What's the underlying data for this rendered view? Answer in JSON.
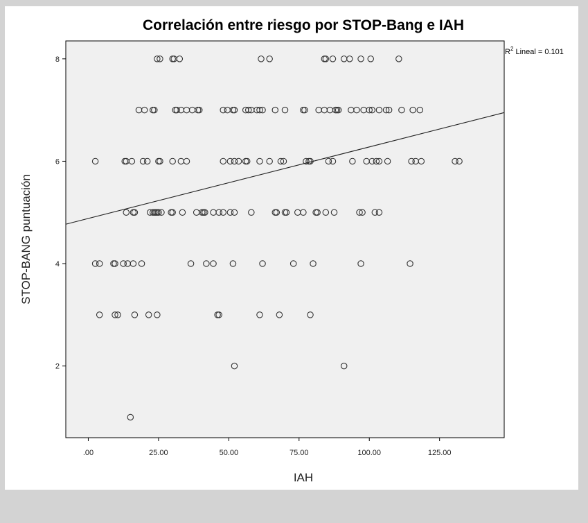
{
  "chart_data": {
    "type": "scatter",
    "title": "Correlación entre riesgo por STOP-Bang e IAH",
    "xlabel": "IAH",
    "ylabel": "STOP-BANG puntuación",
    "xlim": [
      -8,
      148
    ],
    "ylim": [
      0.6,
      8.35
    ],
    "x_ticks": [
      0,
      25,
      50,
      75,
      100,
      125
    ],
    "x_tick_labels": [
      ".00",
      "25.00",
      "50.00",
      "75.00",
      "100.00",
      "125.00"
    ],
    "y_ticks": [
      2,
      4,
      6,
      8
    ],
    "y_tick_labels": [
      "2",
      "4",
      "6",
      "8"
    ],
    "fit_line": {
      "label_prefix": "R",
      "label_sup": "2",
      "label_suffix": " Lineal = 0.101",
      "y_at_xmin": 4.77,
      "y_at_xmax": 6.95
    },
    "points": [
      {
        "x": 15,
        "y": 1
      },
      {
        "x": 52,
        "y": 2
      },
      {
        "x": 91,
        "y": 2
      },
      {
        "x": 4,
        "y": 3
      },
      {
        "x": 9.5,
        "y": 3
      },
      {
        "x": 10.5,
        "y": 3
      },
      {
        "x": 16.5,
        "y": 3
      },
      {
        "x": 21.5,
        "y": 3
      },
      {
        "x": 24.5,
        "y": 3
      },
      {
        "x": 46,
        "y": 3
      },
      {
        "x": 46.5,
        "y": 3
      },
      {
        "x": 61,
        "y": 3
      },
      {
        "x": 68,
        "y": 3
      },
      {
        "x": 79,
        "y": 3
      },
      {
        "x": 2.5,
        "y": 4
      },
      {
        "x": 4,
        "y": 4
      },
      {
        "x": 9,
        "y": 4
      },
      {
        "x": 9.5,
        "y": 4
      },
      {
        "x": 12.5,
        "y": 4
      },
      {
        "x": 14,
        "y": 4
      },
      {
        "x": 16,
        "y": 4
      },
      {
        "x": 19,
        "y": 4
      },
      {
        "x": 36.5,
        "y": 4
      },
      {
        "x": 42,
        "y": 4
      },
      {
        "x": 44.5,
        "y": 4
      },
      {
        "x": 51.5,
        "y": 4
      },
      {
        "x": 62,
        "y": 4
      },
      {
        "x": 73,
        "y": 4
      },
      {
        "x": 80,
        "y": 4
      },
      {
        "x": 97,
        "y": 4
      },
      {
        "x": 114.5,
        "y": 4
      },
      {
        "x": 13.5,
        "y": 5
      },
      {
        "x": 16,
        "y": 5
      },
      {
        "x": 16.5,
        "y": 5
      },
      {
        "x": 22,
        "y": 5
      },
      {
        "x": 23,
        "y": 5
      },
      {
        "x": 23.5,
        "y": 5
      },
      {
        "x": 24,
        "y": 5
      },
      {
        "x": 24.5,
        "y": 5
      },
      {
        "x": 25,
        "y": 5
      },
      {
        "x": 26,
        "y": 5
      },
      {
        "x": 29.5,
        "y": 5
      },
      {
        "x": 30,
        "y": 5
      },
      {
        "x": 33.5,
        "y": 5
      },
      {
        "x": 38.5,
        "y": 5
      },
      {
        "x": 40.5,
        "y": 5
      },
      {
        "x": 41,
        "y": 5
      },
      {
        "x": 41.5,
        "y": 5
      },
      {
        "x": 44.5,
        "y": 5
      },
      {
        "x": 46.5,
        "y": 5
      },
      {
        "x": 48,
        "y": 5
      },
      {
        "x": 50.5,
        "y": 5
      },
      {
        "x": 52,
        "y": 5
      },
      {
        "x": 58,
        "y": 5
      },
      {
        "x": 66.5,
        "y": 5
      },
      {
        "x": 67,
        "y": 5
      },
      {
        "x": 70,
        "y": 5
      },
      {
        "x": 70.5,
        "y": 5
      },
      {
        "x": 74.5,
        "y": 5
      },
      {
        "x": 76.5,
        "y": 5
      },
      {
        "x": 81,
        "y": 5
      },
      {
        "x": 81.5,
        "y": 5
      },
      {
        "x": 84.5,
        "y": 5
      },
      {
        "x": 87.5,
        "y": 5
      },
      {
        "x": 96.5,
        "y": 5
      },
      {
        "x": 97.5,
        "y": 5
      },
      {
        "x": 102,
        "y": 5
      },
      {
        "x": 103.5,
        "y": 5
      },
      {
        "x": 2.5,
        "y": 6
      },
      {
        "x": 13,
        "y": 6
      },
      {
        "x": 13.5,
        "y": 6
      },
      {
        "x": 15.5,
        "y": 6
      },
      {
        "x": 19.5,
        "y": 6
      },
      {
        "x": 21,
        "y": 6
      },
      {
        "x": 25,
        "y": 6
      },
      {
        "x": 25.5,
        "y": 6
      },
      {
        "x": 30,
        "y": 6
      },
      {
        "x": 33,
        "y": 6
      },
      {
        "x": 35,
        "y": 6
      },
      {
        "x": 48,
        "y": 6
      },
      {
        "x": 50.5,
        "y": 6
      },
      {
        "x": 52,
        "y": 6
      },
      {
        "x": 53.5,
        "y": 6
      },
      {
        "x": 56,
        "y": 6
      },
      {
        "x": 56.5,
        "y": 6
      },
      {
        "x": 61,
        "y": 6
      },
      {
        "x": 64.5,
        "y": 6
      },
      {
        "x": 68.5,
        "y": 6
      },
      {
        "x": 69.5,
        "y": 6
      },
      {
        "x": 77.5,
        "y": 6
      },
      {
        "x": 78.5,
        "y": 6
      },
      {
        "x": 79,
        "y": 6
      },
      {
        "x": 85.5,
        "y": 6
      },
      {
        "x": 87,
        "y": 6
      },
      {
        "x": 94,
        "y": 6
      },
      {
        "x": 99,
        "y": 6
      },
      {
        "x": 101,
        "y": 6
      },
      {
        "x": 102.5,
        "y": 6
      },
      {
        "x": 103.5,
        "y": 6
      },
      {
        "x": 106.5,
        "y": 6
      },
      {
        "x": 115,
        "y": 6
      },
      {
        "x": 116.5,
        "y": 6
      },
      {
        "x": 118.5,
        "y": 6
      },
      {
        "x": 130.5,
        "y": 6
      },
      {
        "x": 132,
        "y": 6
      },
      {
        "x": 18,
        "y": 7
      },
      {
        "x": 20,
        "y": 7
      },
      {
        "x": 23,
        "y": 7
      },
      {
        "x": 23.5,
        "y": 7
      },
      {
        "x": 31,
        "y": 7
      },
      {
        "x": 31.5,
        "y": 7
      },
      {
        "x": 33,
        "y": 7
      },
      {
        "x": 35,
        "y": 7
      },
      {
        "x": 37,
        "y": 7
      },
      {
        "x": 39,
        "y": 7
      },
      {
        "x": 39.5,
        "y": 7
      },
      {
        "x": 48,
        "y": 7
      },
      {
        "x": 49.5,
        "y": 7
      },
      {
        "x": 51.5,
        "y": 7
      },
      {
        "x": 52,
        "y": 7
      },
      {
        "x": 56,
        "y": 7
      },
      {
        "x": 57,
        "y": 7
      },
      {
        "x": 58,
        "y": 7
      },
      {
        "x": 60,
        "y": 7
      },
      {
        "x": 61,
        "y": 7
      },
      {
        "x": 62,
        "y": 7
      },
      {
        "x": 66.5,
        "y": 7
      },
      {
        "x": 70,
        "y": 7
      },
      {
        "x": 76.5,
        "y": 7
      },
      {
        "x": 77,
        "y": 7
      },
      {
        "x": 82,
        "y": 7
      },
      {
        "x": 84,
        "y": 7
      },
      {
        "x": 86,
        "y": 7
      },
      {
        "x": 88,
        "y": 7
      },
      {
        "x": 88.5,
        "y": 7
      },
      {
        "x": 89,
        "y": 7
      },
      {
        "x": 93.5,
        "y": 7
      },
      {
        "x": 95.5,
        "y": 7
      },
      {
        "x": 98,
        "y": 7
      },
      {
        "x": 100,
        "y": 7
      },
      {
        "x": 101,
        "y": 7
      },
      {
        "x": 103.5,
        "y": 7
      },
      {
        "x": 106,
        "y": 7
      },
      {
        "x": 107,
        "y": 7
      },
      {
        "x": 111.5,
        "y": 7
      },
      {
        "x": 115.5,
        "y": 7
      },
      {
        "x": 118,
        "y": 7
      },
      {
        "x": 24.5,
        "y": 8
      },
      {
        "x": 25.5,
        "y": 8
      },
      {
        "x": 30,
        "y": 8
      },
      {
        "x": 30.5,
        "y": 8
      },
      {
        "x": 32.5,
        "y": 8
      },
      {
        "x": 61.5,
        "y": 8
      },
      {
        "x": 64.5,
        "y": 8
      },
      {
        "x": 84,
        "y": 8
      },
      {
        "x": 84.5,
        "y": 8
      },
      {
        "x": 87,
        "y": 8
      },
      {
        "x": 91,
        "y": 8
      },
      {
        "x": 93,
        "y": 8
      },
      {
        "x": 97,
        "y": 8
      },
      {
        "x": 100.5,
        "y": 8
      },
      {
        "x": 110.5,
        "y": 8
      }
    ]
  }
}
